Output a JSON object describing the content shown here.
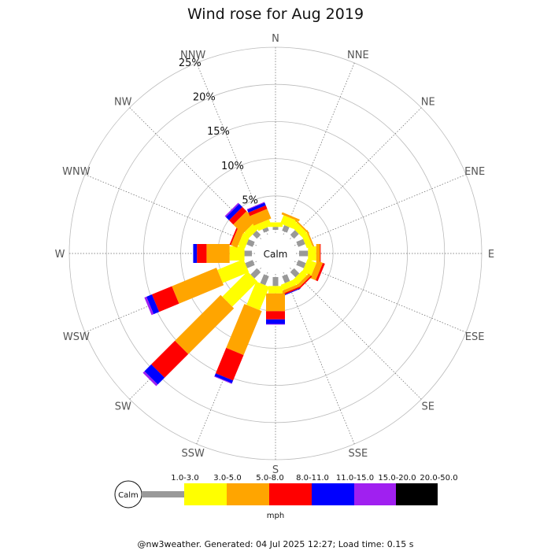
{
  "chart_data": {
    "type": "windrose",
    "title": "Wind rose for Aug 2019",
    "directions": [
      "N",
      "NNE",
      "NE",
      "ENE",
      "E",
      "ESE",
      "SE",
      "SSE",
      "S",
      "SSW",
      "SW",
      "WSW",
      "W",
      "WNW",
      "NW",
      "NNW"
    ],
    "radial_ticks": [
      "5%",
      "10%",
      "15%",
      "20%",
      "25%"
    ],
    "radial_max": 25,
    "calm_label": "Calm",
    "speed_bins": [
      {
        "label": "1.0-3.0",
        "color": "#999999"
      },
      {
        "label": "3.0-5.0",
        "color": "#ffff00"
      },
      {
        "label": "5.0-8.0",
        "color": "#ffa500"
      },
      {
        "label": "8.0-11.0",
        "color": "#ff0000"
      },
      {
        "label": "11.0-15.0",
        "color": "#0000ff"
      },
      {
        "label": "15.0-20.0",
        "color": "#a020f0"
      },
      {
        "label": "20.0-50.0",
        "color": "#000000"
      }
    ],
    "units": "mph",
    "series": [
      {
        "direction": "N",
        "values": [
          0.4,
          0.6,
          0.0,
          0.0,
          0.0,
          0.0,
          0.0
        ]
      },
      {
        "direction": "NNE",
        "values": [
          0.8,
          1.2,
          0.3,
          0.0,
          0.0,
          0.0,
          0.0
        ]
      },
      {
        "direction": "NE",
        "values": [
          0.9,
          0.9,
          0.2,
          0.0,
          0.0,
          0.0,
          0.0
        ]
      },
      {
        "direction": "ENE",
        "values": [
          1.0,
          0.8,
          0.2,
          0.0,
          0.0,
          0.0,
          0.0
        ]
      },
      {
        "direction": "E",
        "values": [
          1.2,
          1.1,
          0.5,
          0.1,
          0.0,
          0.0,
          0.0
        ]
      },
      {
        "direction": "ESE",
        "values": [
          1.1,
          1.3,
          0.8,
          0.3,
          0.0,
          0.0,
          0.0
        ]
      },
      {
        "direction": "SE",
        "values": [
          1.0,
          0.9,
          0.4,
          0.2,
          0.0,
          0.0,
          0.0
        ]
      },
      {
        "direction": "SSE",
        "values": [
          1.0,
          0.8,
          0.4,
          0.2,
          0.1,
          0.0,
          0.0
        ]
      },
      {
        "direction": "S",
        "values": [
          1.2,
          1.0,
          2.4,
          1.1,
          0.6,
          0.1,
          0.0
        ]
      },
      {
        "direction": "SSW",
        "values": [
          1.3,
          3.4,
          6.4,
          3.7,
          0.4,
          0.1,
          0.0
        ]
      },
      {
        "direction": "SW",
        "values": [
          1.2,
          4.8,
          8.7,
          4.5,
          1.3,
          0.3,
          0.0
        ]
      },
      {
        "direction": "WSW",
        "values": [
          1.1,
          3.8,
          6.5,
          2.9,
          0.8,
          0.3,
          0.0
        ]
      },
      {
        "direction": "W",
        "values": [
          1.0,
          2.0,
          3.1,
          1.3,
          0.5,
          0.0,
          0.0
        ]
      },
      {
        "direction": "WNW",
        "values": [
          0.9,
          1.0,
          0.9,
          0.2,
          0.0,
          0.0,
          0.0
        ]
      },
      {
        "direction": "NW",
        "values": [
          0.8,
          1.0,
          1.8,
          0.8,
          0.6,
          0.2,
          0.0
        ]
      },
      {
        "direction": "NNW",
        "values": [
          0.5,
          0.9,
          1.4,
          0.5,
          0.4,
          0.1,
          0.0
        ]
      }
    ]
  },
  "footer": "@nw3weather. Generated: 04 Jul 2025 12:27; Load time: 0.15 s"
}
